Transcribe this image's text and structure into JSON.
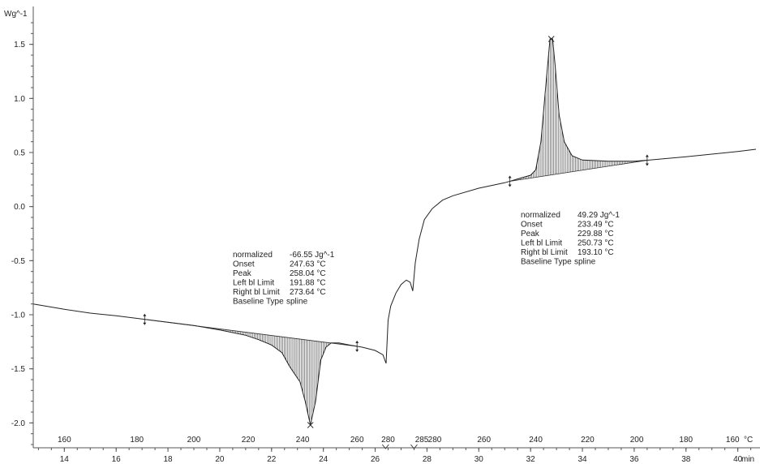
{
  "chart_data": {
    "type": "line",
    "title": "",
    "ylabel": "Wg^-1",
    "y_ticks": [
      "1.5",
      "1.0",
      "0.5",
      "0.0",
      "-0.5",
      "-1.0",
      "-1.5",
      "-2.0"
    ],
    "y_tick_values": [
      1.5,
      1.0,
      0.5,
      0.0,
      -0.5,
      -1.0,
      -1.5,
      -2.0
    ],
    "ylim": [
      -2.2,
      1.85
    ],
    "xlim": [
      12.8,
      40.7
    ],
    "time_axis": {
      "unit": "min",
      "ticks": [
        "14",
        "16",
        "18",
        "20",
        "22",
        "24",
        "26",
        "28",
        "30",
        "32",
        "34",
        "36",
        "38",
        "40"
      ],
      "values": [
        14,
        16,
        18,
        20,
        22,
        24,
        26,
        28,
        30,
        32,
        34,
        36,
        38,
        40
      ]
    },
    "temperature_axis": {
      "unit": "°C",
      "heating_labels": [
        "160",
        "180",
        "200",
        "220",
        "240",
        "260",
        "280",
        "285"
      ],
      "heating_times": [
        14,
        16.8,
        19.0,
        21.1,
        23.2,
        25.3,
        26.5,
        27.8
      ],
      "cooling_labels": [
        "280",
        "260",
        "240",
        "220",
        "200",
        "180",
        "160"
      ],
      "cooling_times": [
        28.3,
        30.2,
        32.2,
        34.2,
        36.1,
        38.0,
        39.8
      ]
    },
    "series": [
      {
        "x": [
          12.8,
          14,
          15,
          16,
          17,
          18,
          19,
          20,
          21,
          21.5,
          22,
          22.4,
          22.7,
          22.9,
          23.1,
          23.3,
          23.5,
          23.7,
          23.9,
          24.1,
          24.3,
          24.6,
          25.0,
          25.5,
          26.0,
          26.3,
          26.42,
          26.5,
          26.6,
          26.8,
          27.0,
          27.2,
          27.35,
          27.45,
          27.55,
          27.7,
          27.9,
          28.2,
          28.6,
          29.0,
          30.0,
          31.0,
          32.0,
          32.2,
          32.4,
          32.6,
          32.75,
          32.85,
          32.95,
          33.1,
          33.3,
          33.6,
          34.0,
          35.0,
          36.0,
          36.6,
          38.0,
          40.0,
          40.7
        ],
        "y": [
          -0.9,
          -0.95,
          -0.985,
          -1.01,
          -1.04,
          -1.07,
          -1.1,
          -1.14,
          -1.19,
          -1.23,
          -1.28,
          -1.35,
          -1.48,
          -1.55,
          -1.62,
          -1.8,
          -2.02,
          -1.8,
          -1.42,
          -1.3,
          -1.26,
          -1.26,
          -1.28,
          -1.3,
          -1.33,
          -1.37,
          -1.45,
          -1.05,
          -0.92,
          -0.8,
          -0.72,
          -0.68,
          -0.7,
          -0.78,
          -0.52,
          -0.3,
          -0.12,
          -0.02,
          0.06,
          0.1,
          0.17,
          0.22,
          0.29,
          0.34,
          0.6,
          1.15,
          1.55,
          1.55,
          1.3,
          0.85,
          0.6,
          0.47,
          0.43,
          0.42,
          0.42,
          0.43,
          0.46,
          0.51,
          0.53
        ]
      }
    ],
    "peaks": [
      {
        "type": "endothermic",
        "peak_time": 23.5,
        "peak_value": -2.02,
        "integration_limits_time": [
          17.1,
          25.3
        ],
        "labels": [
          "normalized",
          "Onset",
          "Peak",
          "Left bl Limit",
          "Right bl Limit",
          "Baseline Type"
        ],
        "values": [
          "-66.55 Jg^-1",
          "247.63 °C",
          "258.04 °C",
          "191.88 °C",
          "273.64 °C",
          "spline"
        ]
      },
      {
        "type": "exothermic",
        "peak_time": 32.8,
        "peak_value": 1.55,
        "integration_limits_time": [
          31.2,
          36.5
        ],
        "labels": [
          "normalized",
          "Onset",
          "Peak",
          "Left bl Limit",
          "Right bl Limit",
          "Baseline Type"
        ],
        "values": [
          "49.29 Jg^-1",
          "233.49 °C",
          "229.88 °C",
          "250.73 °C",
          "193.10 °C",
          "spline"
        ]
      }
    ],
    "grid": false,
    "legend": "none"
  }
}
